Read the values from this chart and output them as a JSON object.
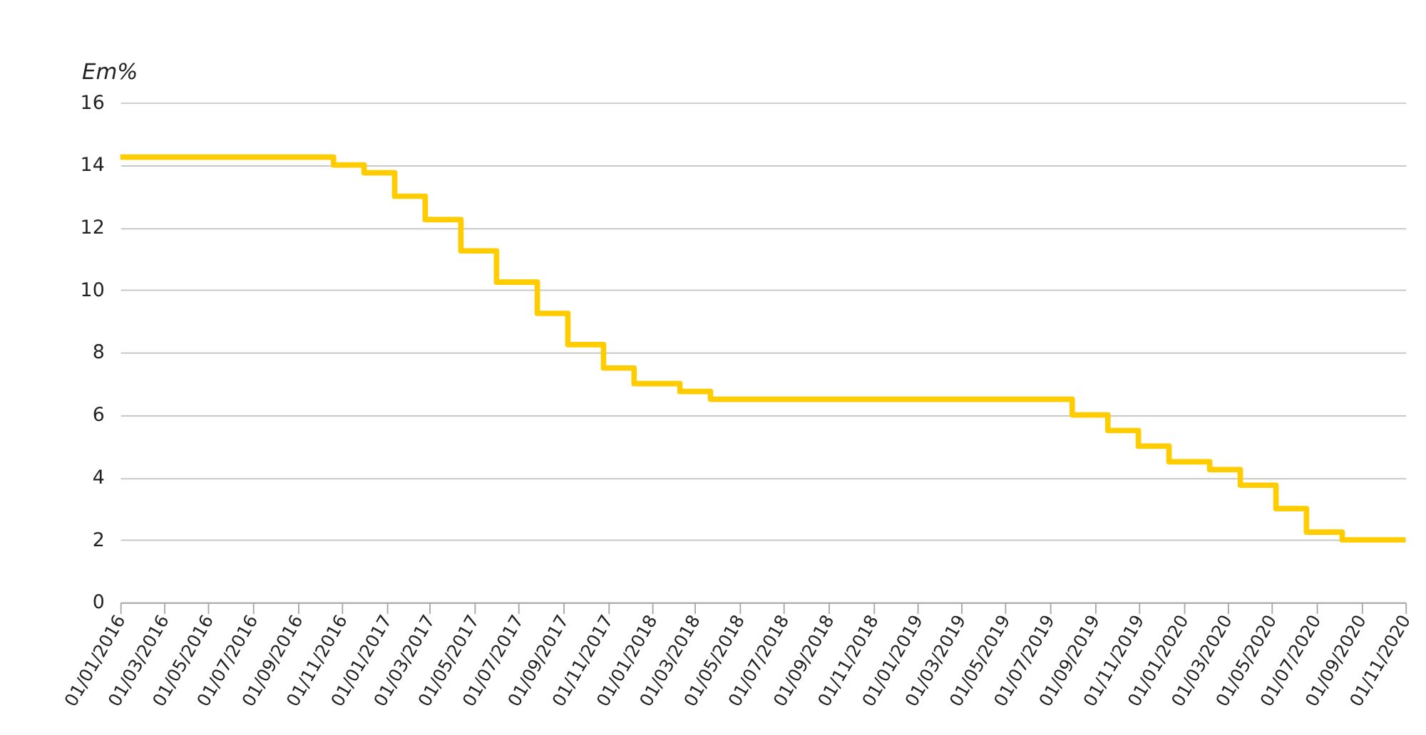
{
  "chart_data": {
    "type": "step",
    "ylabel": "Em%",
    "color": "#ffcc00",
    "line_style": "solid",
    "marker": "none",
    "grid": "y",
    "x": [
      "2016-01-01",
      "2016-10-20",
      "2016-12-01",
      "2017-01-12",
      "2017-02-23",
      "2017-04-13",
      "2017-06-01",
      "2017-07-27",
      "2017-09-07",
      "2017-10-26",
      "2017-12-07",
      "2018-02-08",
      "2018-03-22",
      "2019-08-01",
      "2019-09-19",
      "2019-10-31",
      "2019-12-12",
      "2020-02-06",
      "2020-03-19",
      "2020-05-07",
      "2020-06-18",
      "2020-08-06",
      "2020-11-01"
    ],
    "values": [
      14.25,
      14.0,
      13.75,
      13.0,
      12.25,
      11.25,
      10.25,
      9.25,
      8.25,
      7.5,
      7.0,
      6.75,
      6.5,
      6.0,
      5.5,
      5.0,
      4.5,
      4.25,
      3.75,
      3.0,
      2.25,
      2.0,
      2.0
    ],
    "xlim": [
      "2016-01-01",
      "2020-11-01"
    ],
    "xticks": [
      {
        "value": "2016-01-01",
        "label": "01/01/2016"
      },
      {
        "value": "2016-03-01",
        "label": "01/03/2016"
      },
      {
        "value": "2016-05-01",
        "label": "01/05/2016"
      },
      {
        "value": "2016-07-01",
        "label": "01/07/2016"
      },
      {
        "value": "2016-09-01",
        "label": "01/09/2016"
      },
      {
        "value": "2016-11-01",
        "label": "01/11/2016"
      },
      {
        "value": "2017-01-01",
        "label": "01/01/2017"
      },
      {
        "value": "2017-03-01",
        "label": "01/03/2017"
      },
      {
        "value": "2017-05-01",
        "label": "01/05/2017"
      },
      {
        "value": "2017-07-01",
        "label": "01/07/2017"
      },
      {
        "value": "2017-09-01",
        "label": "01/09/2017"
      },
      {
        "value": "2017-11-01",
        "label": "01/11/2017"
      },
      {
        "value": "2018-01-01",
        "label": "01/01/2018"
      },
      {
        "value": "2018-03-01",
        "label": "01/03/2018"
      },
      {
        "value": "2018-05-01",
        "label": "01/05/2018"
      },
      {
        "value": "2018-07-01",
        "label": "01/07/2018"
      },
      {
        "value": "2018-09-01",
        "label": "01/09/2018"
      },
      {
        "value": "2018-11-01",
        "label": "01/11/2018"
      },
      {
        "value": "2019-01-01",
        "label": "01/01/2019"
      },
      {
        "value": "2019-03-01",
        "label": "01/03/2019"
      },
      {
        "value": "2019-05-01",
        "label": "01/05/2019"
      },
      {
        "value": "2019-07-01",
        "label": "01/07/2019"
      },
      {
        "value": "2019-09-01",
        "label": "01/09/2019"
      },
      {
        "value": "2019-11-01",
        "label": "01/11/2019"
      },
      {
        "value": "2020-01-01",
        "label": "01/01/2020"
      },
      {
        "value": "2020-03-01",
        "label": "01/03/2020"
      },
      {
        "value": "2020-05-01",
        "label": "01/05/2020"
      },
      {
        "value": "2020-07-01",
        "label": "01/07/2020"
      },
      {
        "value": "2020-09-01",
        "label": "01/09/2020"
      },
      {
        "value": "2020-11-01",
        "label": "01/11/2020"
      }
    ],
    "ylim": [
      0,
      16
    ],
    "yticks": [
      0,
      2,
      4,
      6,
      8,
      10,
      12,
      14,
      16
    ]
  }
}
